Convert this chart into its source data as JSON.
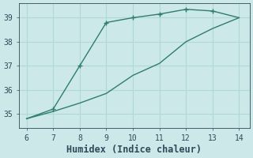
{
  "xlabel": "Humidex (Indice chaleur)",
  "background_color": "#cce8e8",
  "grid_color": "#b0d8d8",
  "line_color": "#2e7d6e",
  "line1_x": [
    6,
    7,
    8,
    9,
    10,
    11,
    12,
    13,
    14
  ],
  "line1_y": [
    34.8,
    35.2,
    37.0,
    38.8,
    39.0,
    39.15,
    39.35,
    39.28,
    39.0
  ],
  "line1_markers_x": [
    7,
    8,
    9,
    10,
    11,
    12,
    13
  ],
  "line1_markers_y": [
    35.2,
    37.0,
    38.8,
    39.0,
    39.15,
    39.35,
    39.28
  ],
  "line2_x": [
    6,
    7,
    8,
    9,
    10,
    11,
    12,
    13,
    14
  ],
  "line2_y": [
    34.8,
    35.1,
    35.45,
    35.85,
    36.6,
    37.1,
    38.0,
    38.55,
    39.0
  ],
  "xlim": [
    5.7,
    14.4
  ],
  "ylim": [
    34.4,
    39.6
  ],
  "xticks": [
    6,
    7,
    8,
    9,
    10,
    11,
    12,
    13,
    14
  ],
  "yticks": [
    35,
    36,
    37,
    38,
    39
  ],
  "font_color": "#2e4a5a",
  "tick_fontsize": 7,
  "xlabel_fontsize": 8.5,
  "linewidth": 1.0,
  "markersize": 3.0
}
